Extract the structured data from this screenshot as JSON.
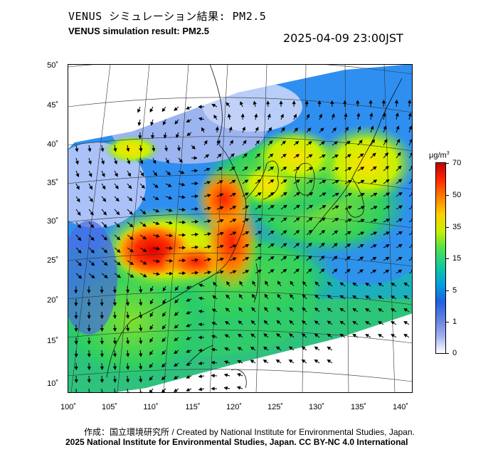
{
  "header": {
    "title_jp": "VENUS シミュレーション結果: PM2.5",
    "title_en": "VENUS simulation result: PM2.5",
    "timestamp": "2025-04-09 23:00JST"
  },
  "map": {
    "lat_ticks": [
      "50˚",
      "45˚",
      "40˚",
      "35˚",
      "30˚",
      "25˚",
      "20˚",
      "15˚",
      "10˚"
    ],
    "lon_ticks": [
      "100˚",
      "105˚",
      "110˚",
      "115˚",
      "120˚",
      "125˚",
      "130˚",
      "135˚",
      "140˚"
    ]
  },
  "colorbar": {
    "unit_base": "μg/m",
    "unit_exp": "3",
    "labels": [
      "70",
      "50",
      "35",
      "15",
      "5",
      "1",
      "0"
    ],
    "colors": [
      "#c00000",
      "#ff2a00",
      "#ff8000",
      "#ffd000",
      "#c8f000",
      "#50e050",
      "#10c8a0",
      "#00a0e0",
      "#2060e0",
      "#6080e0",
      "#a0b0f0",
      "#ffffff"
    ]
  },
  "footer": {
    "credit": "作成：国立環境研究所 / Created by National Institute for Environmental Studies, Japan.",
    "copyright": "2025 National Institute for Environmental Studies, Japan. CC BY-NC 4.0 International"
  }
}
